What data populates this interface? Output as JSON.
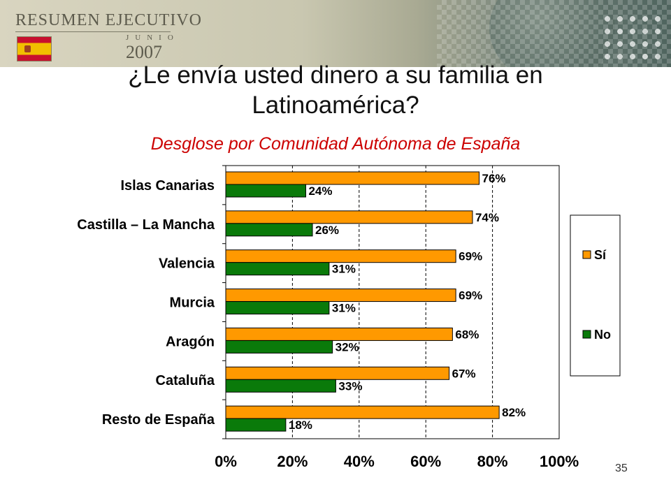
{
  "banner": {
    "title": "RESUMEN EJECUTIVO",
    "month": "JUNIO",
    "year": "2007",
    "flag_icon": "spain-flag-icon"
  },
  "slide": {
    "title_line1": "¿Le envía usted dinero a su familia en",
    "title_line2": "Latinoamérica?",
    "subtitle": "Desglose por Comunidad Autónoma de España",
    "page_number": "35"
  },
  "colors": {
    "si": "#ff9900",
    "no": "#0a7a0a",
    "subtitle": "#cc0000"
  },
  "chart_data": {
    "type": "bar",
    "orientation": "horizontal",
    "title": "",
    "xlabel": "",
    "ylabel": "",
    "categories": [
      "Islas Canarias",
      "Castilla – La Mancha",
      "Valencia",
      "Murcia",
      "Aragón",
      "Cataluña",
      "Resto de España"
    ],
    "series": [
      {
        "name": "Sí",
        "values": [
          76,
          74,
          69,
          69,
          68,
          67,
          82
        ],
        "labels": [
          "76%",
          "74%",
          "69%",
          "69%",
          "68%",
          "67%",
          "82%"
        ]
      },
      {
        "name": "No",
        "values": [
          24,
          26,
          31,
          31,
          32,
          33,
          18
        ],
        "labels": [
          "24%",
          "26%",
          "31%",
          "31%",
          "32%",
          "33%",
          "18%"
        ]
      }
    ],
    "xlim": [
      0,
      100
    ],
    "xticks": [
      0,
      20,
      40,
      60,
      80,
      100
    ],
    "xtick_labels": [
      "0%",
      "20%",
      "40%",
      "60%",
      "80%",
      "100%"
    ],
    "grid": true,
    "legend": "right"
  }
}
